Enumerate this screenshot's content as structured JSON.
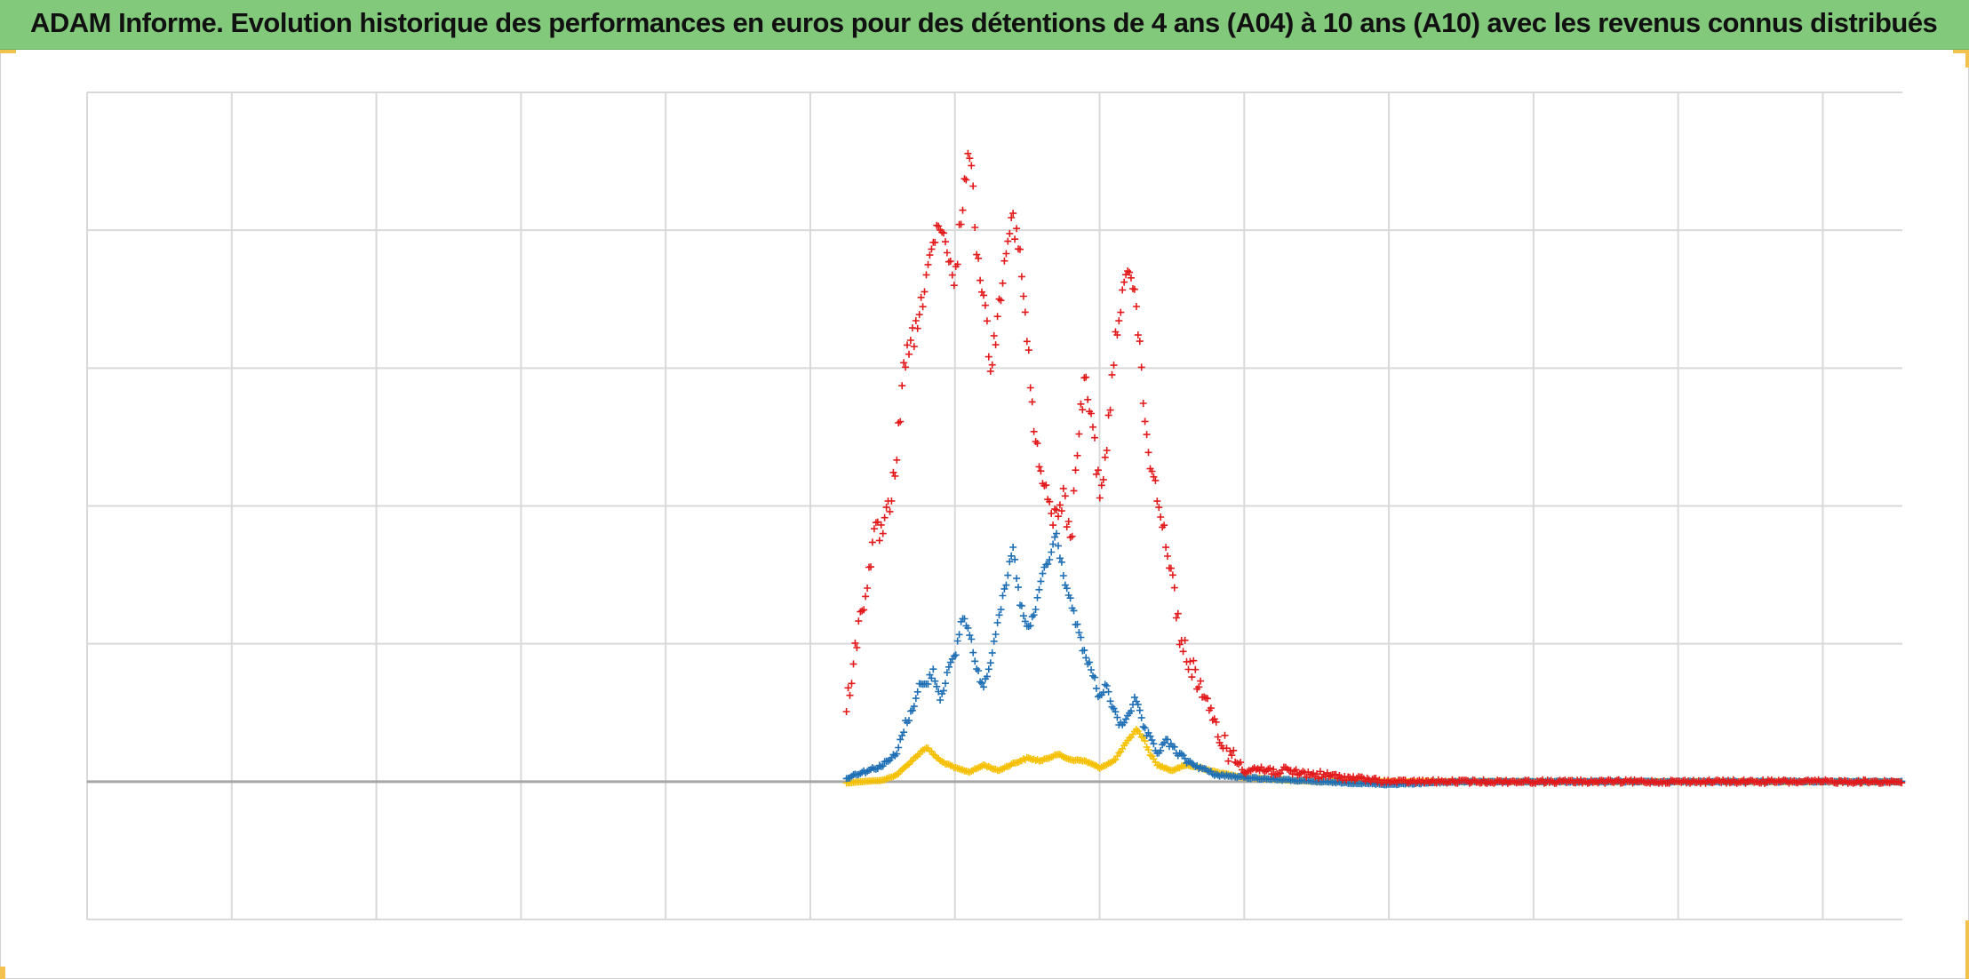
{
  "title": "ADAM Informe. Evolution historique des performances en euros pour des détentions de 4 ans (A04) à 10 ans (A10) avec les revenus connus distribués",
  "colors": {
    "title_bg": "#82c97b",
    "corner_accent": "#f2c14e",
    "series_red": "#e31a1c",
    "series_blue": "#1f6fb5",
    "series_yellow": "#f5c000",
    "grid": "#d9d9d9",
    "baseline": "#a6a6a6"
  },
  "chart_data": {
    "type": "scatter",
    "marker": "+",
    "grid": true,
    "legend": "none",
    "x_divisions": 12.55,
    "y_divisions": 6,
    "baseline_division_from_top": 5,
    "series": [
      {
        "color_key": "series_red",
        "points": [
          [
            5.25,
            4.5
          ],
          [
            5.3,
            4.1
          ],
          [
            5.35,
            3.8
          ],
          [
            5.4,
            3.5
          ],
          [
            5.45,
            3.2
          ],
          [
            5.5,
            3.2
          ],
          [
            5.55,
            3.0
          ],
          [
            5.6,
            2.6
          ],
          [
            5.65,
            2.0
          ],
          [
            5.7,
            1.8
          ],
          [
            5.75,
            1.7
          ],
          [
            5.8,
            1.3
          ],
          [
            5.85,
            1.1
          ],
          [
            5.9,
            1.0
          ],
          [
            5.95,
            1.2
          ],
          [
            6.0,
            1.4
          ],
          [
            6.05,
            0.8
          ],
          [
            6.1,
            0.4
          ],
          [
            6.15,
            1.1
          ],
          [
            6.2,
            1.5
          ],
          [
            6.25,
            2.0
          ],
          [
            6.3,
            1.6
          ],
          [
            6.35,
            1.1
          ],
          [
            6.4,
            0.9
          ],
          [
            6.45,
            1.2
          ],
          [
            6.5,
            1.8
          ],
          [
            6.55,
            2.5
          ],
          [
            6.6,
            2.8
          ],
          [
            6.65,
            3.0
          ],
          [
            6.7,
            3.1
          ],
          [
            6.75,
            2.9
          ],
          [
            6.8,
            3.3
          ],
          [
            6.85,
            2.5
          ],
          [
            6.9,
            2.1
          ],
          [
            6.95,
            2.4
          ],
          [
            7.0,
            2.9
          ],
          [
            7.05,
            2.6
          ],
          [
            7.1,
            1.9
          ],
          [
            7.15,
            1.5
          ],
          [
            7.2,
            1.2
          ],
          [
            7.25,
            1.5
          ],
          [
            7.3,
            2.2
          ],
          [
            7.35,
            2.7
          ],
          [
            7.4,
            2.9
          ],
          [
            7.45,
            3.2
          ],
          [
            7.5,
            3.5
          ],
          [
            7.55,
            3.9
          ],
          [
            7.6,
            4.1
          ],
          [
            7.65,
            4.2
          ],
          [
            7.7,
            4.3
          ],
          [
            7.75,
            4.5
          ],
          [
            7.8,
            4.6
          ],
          [
            7.85,
            4.7
          ],
          [
            7.9,
            4.8
          ],
          [
            7.95,
            4.85
          ],
          [
            8.0,
            4.9
          ],
          [
            8.2,
            4.92
          ],
          [
            8.5,
            4.95
          ],
          [
            9.0,
            5.0
          ],
          [
            9.5,
            5.0
          ],
          [
            10.0,
            5.0
          ],
          [
            10.5,
            5.0
          ],
          [
            11.0,
            5.0
          ],
          [
            11.5,
            5.0
          ],
          [
            12.0,
            5.0
          ],
          [
            12.55,
            5.0
          ]
        ]
      },
      {
        "color_key": "series_blue",
        "points": [
          [
            5.25,
            4.98
          ],
          [
            5.3,
            4.95
          ],
          [
            5.4,
            4.92
          ],
          [
            5.5,
            4.88
          ],
          [
            5.6,
            4.8
          ],
          [
            5.65,
            4.6
          ],
          [
            5.7,
            4.5
          ],
          [
            5.75,
            4.3
          ],
          [
            5.8,
            4.3
          ],
          [
            5.85,
            4.2
          ],
          [
            5.9,
            4.4
          ],
          [
            5.95,
            4.2
          ],
          [
            6.0,
            4.1
          ],
          [
            6.05,
            3.8
          ],
          [
            6.1,
            3.9
          ],
          [
            6.15,
            4.2
          ],
          [
            6.2,
            4.3
          ],
          [
            6.25,
            4.1
          ],
          [
            6.3,
            3.8
          ],
          [
            6.35,
            3.6
          ],
          [
            6.4,
            3.3
          ],
          [
            6.45,
            3.7
          ],
          [
            6.5,
            3.9
          ],
          [
            6.55,
            3.8
          ],
          [
            6.6,
            3.5
          ],
          [
            6.65,
            3.4
          ],
          [
            6.7,
            3.2
          ],
          [
            6.75,
            3.5
          ],
          [
            6.8,
            3.7
          ],
          [
            6.85,
            3.9
          ],
          [
            6.9,
            4.1
          ],
          [
            6.95,
            4.2
          ],
          [
            7.0,
            4.4
          ],
          [
            7.05,
            4.3
          ],
          [
            7.1,
            4.5
          ],
          [
            7.15,
            4.6
          ],
          [
            7.2,
            4.5
          ],
          [
            7.25,
            4.4
          ],
          [
            7.3,
            4.6
          ],
          [
            7.35,
            4.7
          ],
          [
            7.4,
            4.8
          ],
          [
            7.45,
            4.7
          ],
          [
            7.5,
            4.75
          ],
          [
            7.6,
            4.85
          ],
          [
            7.7,
            4.9
          ],
          [
            7.8,
            4.95
          ],
          [
            8.0,
            4.97
          ],
          [
            8.5,
            5.0
          ],
          [
            9.0,
            5.02
          ],
          [
            9.5,
            5.0
          ],
          [
            10.0,
            5.0
          ],
          [
            10.5,
            5.0
          ],
          [
            11.0,
            5.0
          ],
          [
            11.5,
            5.0
          ],
          [
            12.0,
            5.0
          ],
          [
            12.55,
            5.0
          ]
        ]
      },
      {
        "color_key": "series_yellow",
        "points": [
          [
            5.25,
            5.01
          ],
          [
            5.35,
            5.0
          ],
          [
            5.5,
            4.99
          ],
          [
            5.6,
            4.95
          ],
          [
            5.7,
            4.85
          ],
          [
            5.8,
            4.75
          ],
          [
            5.9,
            4.85
          ],
          [
            6.0,
            4.9
          ],
          [
            6.1,
            4.93
          ],
          [
            6.2,
            4.88
          ],
          [
            6.3,
            4.92
          ],
          [
            6.4,
            4.87
          ],
          [
            6.5,
            4.83
          ],
          [
            6.6,
            4.85
          ],
          [
            6.7,
            4.8
          ],
          [
            6.8,
            4.84
          ],
          [
            6.9,
            4.85
          ],
          [
            7.0,
            4.9
          ],
          [
            7.1,
            4.85
          ],
          [
            7.2,
            4.7
          ],
          [
            7.25,
            4.62
          ],
          [
            7.3,
            4.68
          ],
          [
            7.35,
            4.8
          ],
          [
            7.4,
            4.88
          ],
          [
            7.5,
            4.92
          ],
          [
            7.6,
            4.88
          ],
          [
            7.7,
            4.9
          ],
          [
            7.8,
            4.93
          ],
          [
            8.0,
            4.97
          ],
          [
            8.5,
            5.0
          ],
          [
            9.0,
            5.0
          ],
          [
            9.5,
            5.0
          ],
          [
            10.0,
            5.0
          ],
          [
            10.5,
            5.0
          ],
          [
            11.0,
            5.0
          ],
          [
            11.5,
            5.0
          ],
          [
            12.0,
            5.0
          ],
          [
            12.55,
            5.0
          ]
        ]
      }
    ]
  }
}
